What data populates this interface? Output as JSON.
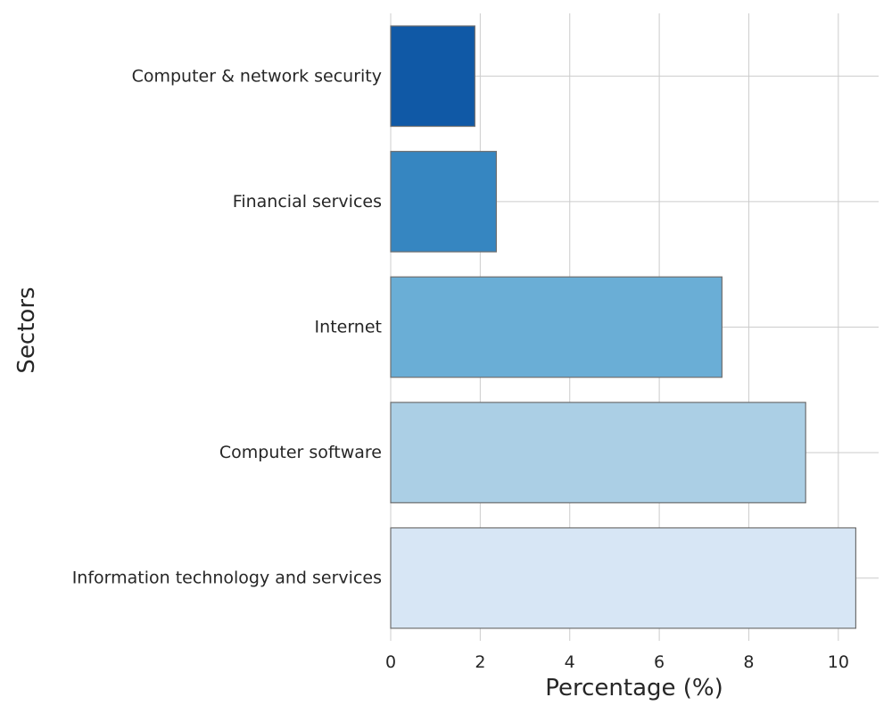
{
  "chart_data": {
    "type": "bar",
    "orientation": "horizontal",
    "categories": [
      "Computer & network security",
      "Financial services",
      "Internet",
      "Computer software",
      "Information technology and services"
    ],
    "values": [
      1.88,
      2.36,
      7.4,
      9.27,
      10.39
    ],
    "colors": [
      "#1059a6",
      "#3686c1",
      "#6aaed6",
      "#abcfe5",
      "#d7e6f5"
    ],
    "xlabel": "Percentage (%)",
    "ylabel": "Sectors",
    "xlim": [
      0,
      10.9
    ],
    "xticks": [
      0,
      2,
      4,
      6,
      8,
      10
    ],
    "grid": true
  }
}
